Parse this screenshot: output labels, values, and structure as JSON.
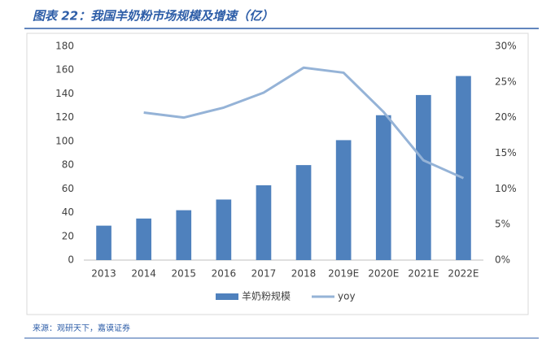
{
  "chart_data": {
    "type": "bar",
    "title": "图表 22：我国羊奶粉市场规模及增速（亿）",
    "source": "来源：观研天下，嘉谟证券",
    "categories": [
      "2013",
      "2014",
      "2015",
      "2016",
      "2017",
      "2018",
      "2019E",
      "2020E",
      "2021E",
      "2022E"
    ],
    "series": [
      {
        "name": "羊奶粉规模",
        "type": "bar",
        "color": "#4f81bd",
        "values": [
          29,
          35,
          42,
          51,
          63,
          80,
          101,
          122,
          139,
          155
        ]
      },
      {
        "name": "yoy",
        "type": "line",
        "axis": "y2",
        "color": "#95b3d7",
        "values": [
          null,
          20.7,
          20.0,
          21.4,
          23.5,
          27.0,
          26.3,
          20.8,
          14.0,
          11.5
        ]
      }
    ],
    "ylim": [
      0,
      180
    ],
    "yticks": [
      0,
      20,
      40,
      60,
      80,
      100,
      120,
      140,
      160,
      180
    ],
    "y2lim": [
      0,
      30
    ],
    "y2ticks": [
      {
        "value": 0,
        "label": "0%"
      },
      {
        "value": 5,
        "label": "5%"
      },
      {
        "value": 10,
        "label": "10%"
      },
      {
        "value": 15,
        "label": "15%"
      },
      {
        "value": 20,
        "label": "20%"
      },
      {
        "value": 25,
        "label": "25%"
      },
      {
        "value": 30,
        "label": "30%"
      }
    ],
    "legend": "bottom"
  }
}
